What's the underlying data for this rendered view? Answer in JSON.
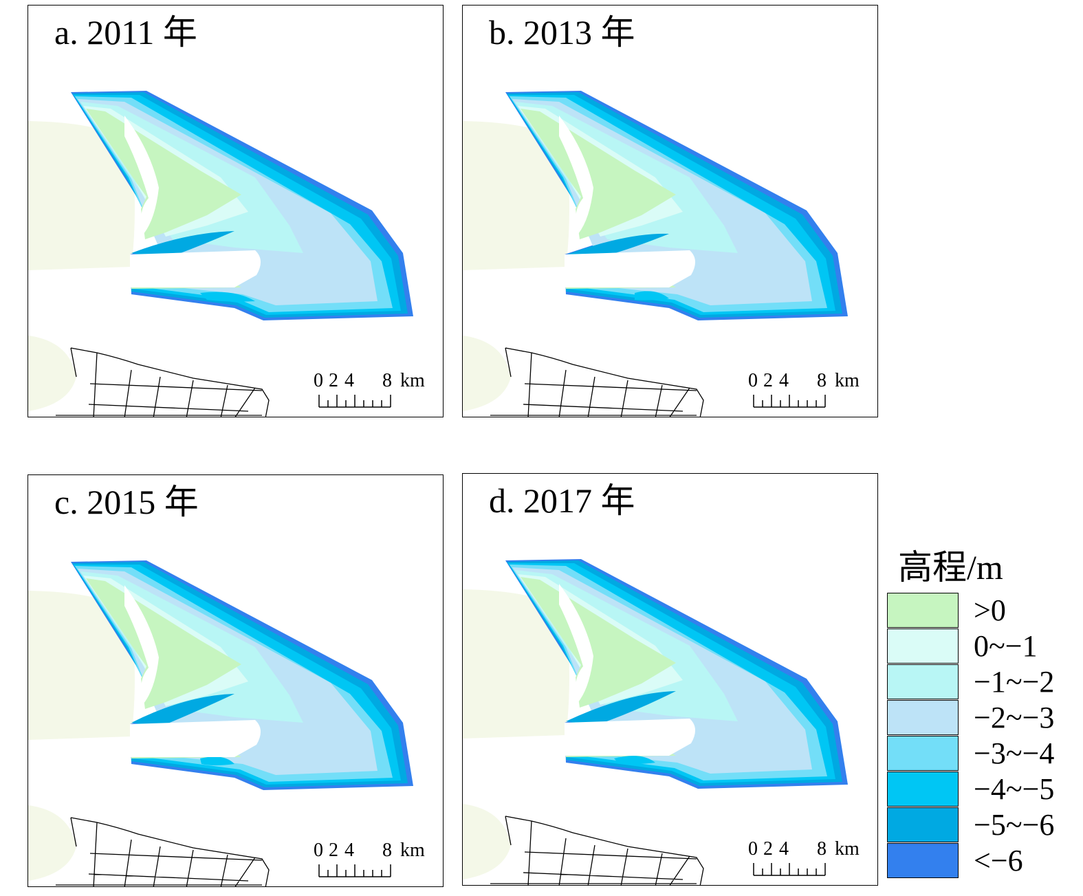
{
  "panels": [
    {
      "id": "a",
      "title": "a. 2011 年"
    },
    {
      "id": "b",
      "title": "b. 2013 年"
    },
    {
      "id": "c",
      "title": "c. 2015 年"
    },
    {
      "id": "d",
      "title": "d. 2017 年"
    }
  ],
  "scalebar": {
    "labels": [
      "0",
      "2",
      "4",
      "8"
    ],
    "unit": "km"
  },
  "legend": {
    "title": "高程/m",
    "items": [
      {
        "label": ">0",
        "color": "#c6f5c0"
      },
      {
        "label": "0~−1",
        "color": "#dafcf7"
      },
      {
        "label": "−1~−2",
        "color": "#b8f6f5"
      },
      {
        "label": "−2~−3",
        "color": "#bde3f7"
      },
      {
        "label": "−3~−4",
        "color": "#73def8"
      },
      {
        "label": "−4~−5",
        "color": "#00c6f4"
      },
      {
        "label": "−5~−6",
        "color": "#00a9e2"
      },
      {
        "label": "<−6",
        "color": "#3380ee"
      }
    ]
  },
  "land_color": "#f4f8e8"
}
